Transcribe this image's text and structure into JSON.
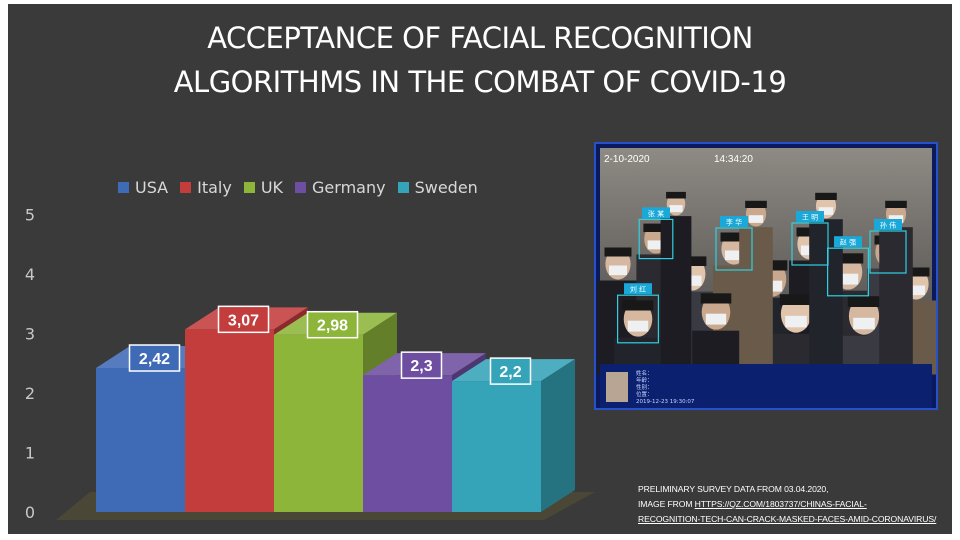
{
  "title": {
    "line1": "ACCEPTANCE OF FACIAL RECOGNITION",
    "line2": "ALGORITHMS IN THE COMBAT OF COVID-19"
  },
  "chart_data": {
    "type": "bar",
    "categories": [
      "USA",
      "Italy",
      "UK",
      "Germany",
      "Sweden"
    ],
    "values": [
      2.42,
      3.07,
      2.98,
      2.3,
      2.2
    ],
    "data_labels": [
      "2,42",
      "3,07",
      "2,98",
      "2,3",
      "2,2"
    ],
    "colors": [
      "#3f6ab6",
      "#c33d3d",
      "#8db53a",
      "#6e4ea0",
      "#35a3b8"
    ],
    "ylim": [
      0,
      5
    ],
    "yticks": [
      "0",
      "1",
      "2",
      "3",
      "4",
      "5"
    ],
    "legend": [
      "USA",
      "Italy",
      "UK",
      "Germany",
      "Sweden"
    ],
    "legend_position": "top",
    "grid": false,
    "style": "3d-column",
    "xlabel": "",
    "ylabel": ""
  },
  "photo": {
    "timestamp": "2-10-2020",
    "clock": "14:34:20",
    "panel_lines": [
      "姓名：",
      "年龄：",
      "性别：",
      "位置：",
      "2019-12-23 19:30:07"
    ],
    "face_tags": [
      "张 某",
      "李 华",
      "王 明",
      "赵 强",
      "孙 伟",
      "刘 红"
    ]
  },
  "caption": {
    "line1": "PRELIMINARY SURVEY DATA FROM 03.04.2020,",
    "line2_prefix": "IMAGE FROM ",
    "line2_link": "HTTPS://QZ.COM/1803737/CHINAS-FACIAL-",
    "line3": "RECOGNITION-TECH-CAN-CRACK-MASKED-FACES-AMID-CORONAVIRUS/"
  }
}
